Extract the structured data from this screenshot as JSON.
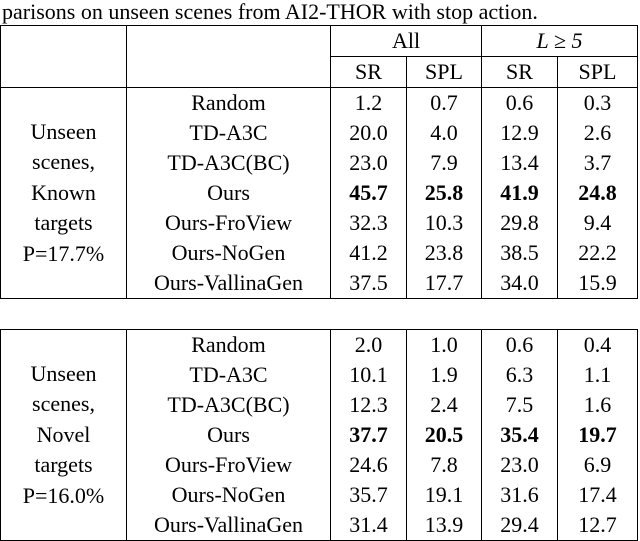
{
  "caption": "parisons on unseen scenes from AI2-THOR with stop action.",
  "header": {
    "group_all": "All",
    "group_long": "L ≥ 5",
    "sr": "SR",
    "spl": "SPL"
  },
  "sections": [
    {
      "label_lines": [
        "Unseen",
        "scenes,",
        "Known",
        "targets",
        "P=17.7%"
      ],
      "rows": [
        {
          "method": "Random",
          "all_sr": "1.2",
          "all_spl": "0.7",
          "long_sr": "0.6",
          "long_spl": "0.3",
          "bold": false
        },
        {
          "method": "TD-A3C",
          "all_sr": "20.0",
          "all_spl": "4.0",
          "long_sr": "12.9",
          "long_spl": "2.6",
          "bold": false
        },
        {
          "method": "TD-A3C(BC)",
          "all_sr": "23.0",
          "all_spl": "7.9",
          "long_sr": "13.4",
          "long_spl": "3.7",
          "bold": false
        },
        {
          "method": "Ours",
          "all_sr": "45.7",
          "all_spl": "25.8",
          "long_sr": "41.9",
          "long_spl": "24.8",
          "bold": true
        },
        {
          "method": "Ours-FroView",
          "all_sr": "32.3",
          "all_spl": "10.3",
          "long_sr": "29.8",
          "long_spl": "9.4",
          "bold": false
        },
        {
          "method": "Ours-NoGen",
          "all_sr": "41.2",
          "all_spl": "23.8",
          "long_sr": "38.5",
          "long_spl": "22.2",
          "bold": false
        },
        {
          "method": "Ours-VallinaGen",
          "all_sr": "37.5",
          "all_spl": "17.7",
          "long_sr": "34.0",
          "long_spl": "15.9",
          "bold": false
        }
      ]
    },
    {
      "label_lines": [
        "Unseen",
        "scenes,",
        "Novel",
        "targets",
        "P=16.0%"
      ],
      "rows": [
        {
          "method": "Random",
          "all_sr": "2.0",
          "all_spl": "1.0",
          "long_sr": "0.6",
          "long_spl": "0.4",
          "bold": false
        },
        {
          "method": "TD-A3C",
          "all_sr": "10.1",
          "all_spl": "1.9",
          "long_sr": "6.3",
          "long_spl": "1.1",
          "bold": false
        },
        {
          "method": "TD-A3C(BC)",
          "all_sr": "12.3",
          "all_spl": "2.4",
          "long_sr": "7.5",
          "long_spl": "1.6",
          "bold": false
        },
        {
          "method": "Ours",
          "all_sr": "37.7",
          "all_spl": "20.5",
          "long_sr": "35.4",
          "long_spl": "19.7",
          "bold": true
        },
        {
          "method": "Ours-FroView",
          "all_sr": "24.6",
          "all_spl": "7.8",
          "long_sr": "23.0",
          "long_spl": "6.9",
          "bold": false
        },
        {
          "method": "Ours-NoGen",
          "all_sr": "35.7",
          "all_spl": "19.1",
          "long_sr": "31.6",
          "long_spl": "17.4",
          "bold": false
        },
        {
          "method": "Ours-VallinaGen",
          "all_sr": "31.4",
          "all_spl": "13.9",
          "long_sr": "29.4",
          "long_spl": "12.7",
          "bold": false
        }
      ]
    }
  ]
}
